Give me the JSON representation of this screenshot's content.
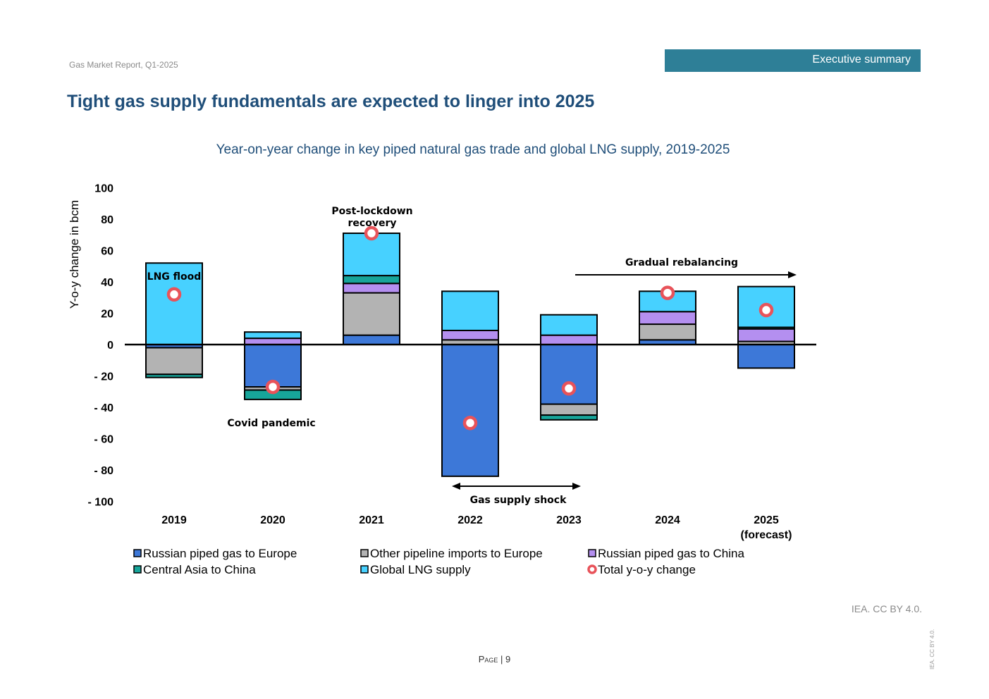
{
  "header": {
    "report_label": "Gas Market Report, Q1-2025",
    "section_badge": "Executive summary"
  },
  "page_title": "Tight gas supply fundamentals are expected to linger into 2025",
  "footer": {
    "credit": "IEA. CC BY 4.0.",
    "page_label": "Page | 9",
    "vertical_credit": "IEA. CC BY 4.0."
  },
  "colors": {
    "russian_europe": "#3d78d8",
    "other_pipeline": "#b3b3b3",
    "russian_china": "#b48ff0",
    "central_asia": "#17a59a",
    "lng": "#47d1ff",
    "total_marker": "#e8535a",
    "title": "#1f4e79",
    "badge": "#2e7f97"
  },
  "chart_data": {
    "type": "bar",
    "stacked": true,
    "title": "Year-on-year change in key piped natural gas trade and global LNG supply, 2019-2025",
    "ylabel": "Y-o-y change in bcm",
    "ylim": [
      -100,
      100
    ],
    "yticks": [
      100,
      80,
      60,
      40,
      20,
      0,
      -20,
      -40,
      -60,
      -80,
      -100
    ],
    "ytick_labels": [
      "100",
      "80",
      "60",
      "40",
      "20",
      "0",
      "- 20",
      "- 40",
      "- 60",
      "- 80",
      "- 100"
    ],
    "categories": [
      "2019",
      "2020",
      "2021",
      "2022",
      "2023",
      "2024",
      "2025 (forecast)"
    ],
    "category_labels": [
      [
        "2019"
      ],
      [
        "2020"
      ],
      [
        "2021"
      ],
      [
        "2022"
      ],
      [
        "2023"
      ],
      [
        "2024"
      ],
      [
        "2025",
        "(forecast)"
      ]
    ],
    "series": [
      {
        "name": "Russian piped gas to Europe",
        "values": [
          -2,
          -27,
          6,
          -84,
          -38,
          3,
          -15
        ]
      },
      {
        "name": "Other pipeline imports to Europe",
        "values": [
          -17,
          -2,
          27,
          3,
          -7,
          10,
          2
        ]
      },
      {
        "name": "Russian piped gas to China",
        "values": [
          0,
          4,
          6,
          6,
          6,
          8,
          8
        ]
      },
      {
        "name": "Central Asia to China",
        "values": [
          -2,
          -6,
          5,
          0,
          -3,
          0,
          1
        ]
      },
      {
        "name": "Global LNG supply",
        "values": [
          52,
          4,
          27,
          25,
          13,
          13,
          26
        ]
      }
    ],
    "totals": {
      "name": "Total y-o-y change",
      "values": [
        32,
        -27,
        71,
        -50,
        -28,
        33,
        22
      ]
    },
    "annotations": [
      {
        "text": "LNG flood"
      },
      {
        "text": "Covid pandemic"
      },
      {
        "text": "Post-lockdown recovery"
      },
      {
        "text": "Gas supply shock"
      },
      {
        "text": "Gradual rebalancing"
      }
    ],
    "legend": [
      "Russian piped gas to Europe",
      "Other pipeline imports to Europe",
      "Russian piped gas to China",
      "Central Asia to China",
      "Global LNG supply",
      "Total y-o-y change"
    ],
    "legend_position": "bottom",
    "grid": false
  }
}
